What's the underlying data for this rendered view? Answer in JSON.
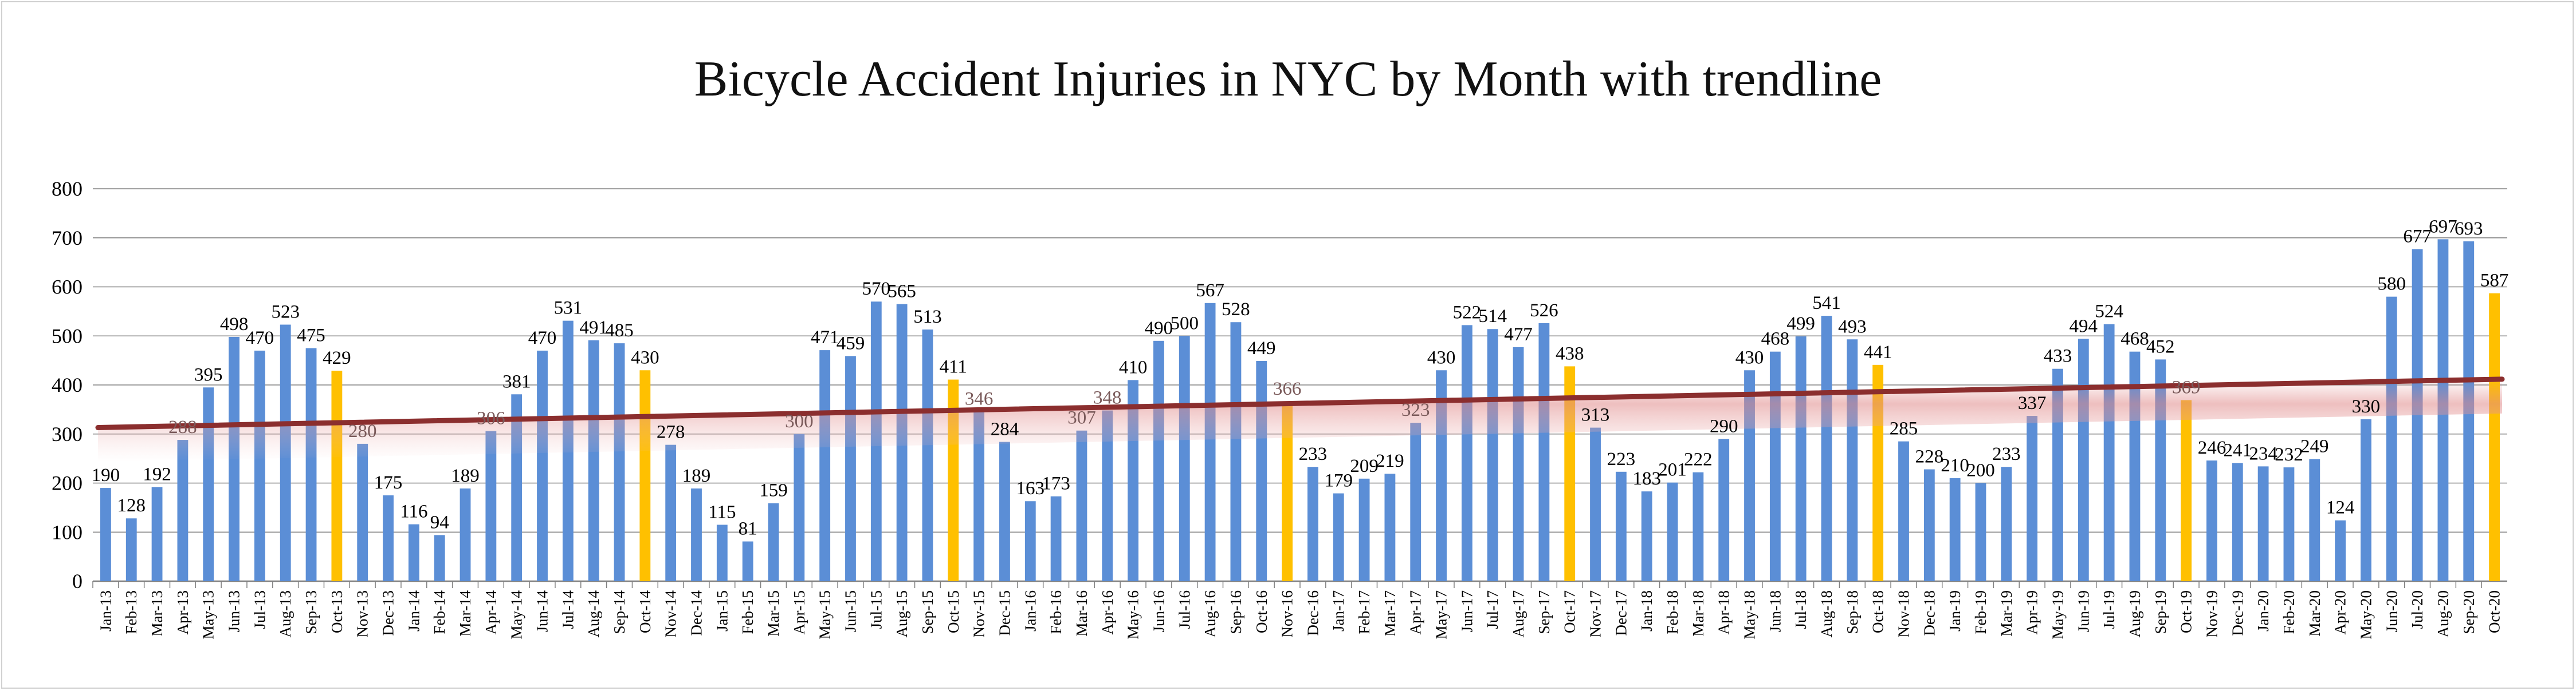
{
  "chart_data": {
    "type": "bar",
    "title": "Bicycle Accident Injuries in NYC by Month with trendline",
    "xlabel": "",
    "ylabel": "",
    "ylim": [
      0,
      800
    ],
    "yticks": [
      0,
      100,
      200,
      300,
      400,
      500,
      600,
      700,
      800
    ],
    "grid": true,
    "legend": "none",
    "trendline": {
      "type": "linear",
      "color": "#8b2e2e"
    },
    "colors": {
      "bar": "#5b8ed6",
      "highlight": "#ffc000",
      "trendline": "#8b2e2e",
      "grid": "#808080"
    },
    "highlight_categories": [
      "Oct-13",
      "Oct-14",
      "Oct-15",
      "Nov-16",
      "Oct-17",
      "Oct-18",
      "Oct-19",
      "Oct-20"
    ],
    "categories": [
      "Jan-13",
      "Feb-13",
      "Mar-13",
      "Apr-13",
      "May-13",
      "Jun-13",
      "Jul-13",
      "Aug-13",
      "Sep-13",
      "Oct-13",
      "Nov-13",
      "Dec-13",
      "Jan-14",
      "Feb-14",
      "Mar-14",
      "Apr-14",
      "May-14",
      "Jun-14",
      "Jul-14",
      "Aug-14",
      "Sep-14",
      "Oct-14",
      "Nov-14",
      "Dec-14",
      "Jan-15",
      "Feb-15",
      "Mar-15",
      "Apr-15",
      "May-15",
      "Jun-15",
      "Jul-15",
      "Aug-15",
      "Sep-15",
      "Oct-15",
      "Nov-15",
      "Dec-15",
      "Jan-16",
      "Feb-16",
      "Mar-16",
      "Apr-16",
      "May-16",
      "Jun-16",
      "Jul-16",
      "Aug-16",
      "Sep-16",
      "Oct-16",
      "Nov-16",
      "Dec-16",
      "Jan-17",
      "Feb-17",
      "Mar-17",
      "Apr-17",
      "May-17",
      "Jun-17",
      "Jul-17",
      "Aug-17",
      "Sep-17",
      "Oct-17",
      "Nov-17",
      "Dec-17",
      "Jan-18",
      "Feb-18",
      "Mar-18",
      "Apr-18",
      "May-18",
      "Jun-18",
      "Jul-18",
      "Aug-18",
      "Sep-18",
      "Oct-18",
      "Nov-18",
      "Dec-18",
      "Jan-19",
      "Feb-19",
      "Mar-19",
      "Apr-19",
      "May-19",
      "Jun-19",
      "Jul-19",
      "Aug-19",
      "Sep-19",
      "Oct-19",
      "Nov-19",
      "Dec-19",
      "Jan-20",
      "Feb-20",
      "Mar-20",
      "Apr-20",
      "May-20",
      "Jun-20",
      "Jul-20",
      "Aug-20",
      "Sep-20",
      "Oct-20"
    ],
    "values": [
      190,
      128,
      192,
      288,
      395,
      498,
      470,
      523,
      475,
      429,
      280,
      175,
      116,
      94,
      189,
      306,
      381,
      470,
      531,
      491,
      485,
      430,
      278,
      189,
      115,
      81,
      159,
      300,
      471,
      459,
      570,
      565,
      513,
      411,
      346,
      284,
      163,
      173,
      307,
      348,
      410,
      490,
      500,
      567,
      528,
      449,
      366,
      233,
      179,
      209,
      219,
      323,
      430,
      522,
      514,
      477,
      526,
      438,
      313,
      223,
      183,
      201,
      222,
      290,
      430,
      468,
      499,
      541,
      493,
      441,
      285,
      228,
      210,
      200,
      233,
      337,
      433,
      494,
      524,
      468,
      452,
      369,
      246,
      241,
      234,
      232,
      249,
      124,
      330,
      580,
      677,
      697,
      693,
      587
    ]
  }
}
